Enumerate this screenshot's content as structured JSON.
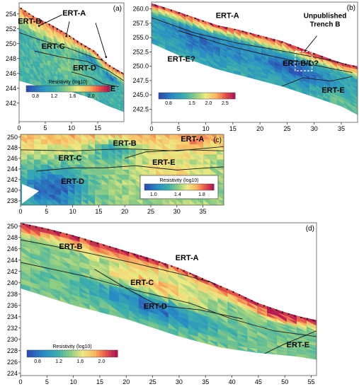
{
  "chart_data": [
    {
      "type": "heatmap",
      "panel_label": "(a)",
      "colorbar": {
        "title": "Resistivity (log10)",
        "ticks": [
          "0.8",
          "1.2",
          "1.6",
          "2.0"
        ],
        "range": [
          0.6,
          2.4
        ]
      },
      "xticks": [
        0,
        5,
        10,
        15
      ],
      "yticks": [
        242,
        244,
        246,
        248,
        250,
        252,
        254
      ],
      "xlim": [
        0,
        20
      ],
      "ylim": [
        239.5,
        255.5
      ],
      "units": [
        {
          "label": "ERT-B",
          "x": 2.0,
          "y": 252.7
        },
        {
          "label": "ERT-A",
          "x": 10.5,
          "y": 253.8
        },
        {
          "label": "ERT-C",
          "x": 6.5,
          "y": 249.3
        },
        {
          "label": "ERT-D",
          "x": 12.5,
          "y": 246.4
        },
        {
          "label": "ERT-E",
          "x": 16.2,
          "y": 243.6
        }
      ],
      "surface": [
        [
          0,
          255
        ],
        [
          3,
          253.6
        ],
        [
          6,
          252.6
        ],
        [
          9,
          251.4
        ],
        [
          12,
          250
        ],
        [
          14.5,
          249
        ],
        [
          16,
          247.8
        ],
        [
          17.5,
          247
        ],
        [
          20,
          246
        ]
      ],
      "bottom": [
        [
          0,
          245
        ],
        [
          5,
          244
        ],
        [
          10,
          243.5
        ],
        [
          14,
          242.6
        ],
        [
          17,
          241.6
        ],
        [
          20,
          240.8
        ]
      ]
    },
    {
      "type": "heatmap",
      "panel_label": "(b)",
      "colorbar": {
        "title": "",
        "ticks": [
          "0.8",
          "1.5",
          "2.0",
          "2.5"
        ],
        "range": [
          0.5,
          2.8
        ]
      },
      "xticks": [
        0,
        5,
        10,
        15,
        20,
        25,
        30,
        35
      ],
      "yticks": [
        242.5,
        245.0,
        247.5,
        250.0,
        252.5,
        255.0,
        257.5,
        260.0
      ],
      "xlim": [
        0,
        38
      ],
      "ylim": [
        240.2,
        261.2
      ],
      "units": [
        {
          "label": "ERT-A",
          "x": 14.0,
          "y": 258.4
        },
        {
          "label": "ERT-E?",
          "x": 5.5,
          "y": 250.8
        },
        {
          "label": "ERT-B/D?",
          "x": 27.5,
          "y": 250.1
        },
        {
          "label": "ERT-E",
          "x": 33.5,
          "y": 245.4
        }
      ],
      "annotation": {
        "text": [
          "Unpublished",
          "Trench B"
        ]
      },
      "surface": [
        [
          0,
          261
        ],
        [
          4,
          259.8
        ],
        [
          8,
          258.5
        ],
        [
          12,
          257.2
        ],
        [
          16,
          256.4
        ],
        [
          20,
          255.4
        ],
        [
          24,
          254.4
        ],
        [
          28,
          253
        ],
        [
          32,
          251.6
        ],
        [
          35,
          250.6
        ],
        [
          38,
          250
        ]
      ],
      "bottom": [
        [
          0,
          254
        ],
        [
          6,
          251.5
        ],
        [
          12,
          249.5
        ],
        [
          18,
          248
        ],
        [
          24,
          246.5
        ],
        [
          30,
          244.6
        ],
        [
          35,
          243
        ],
        [
          38,
          241.5
        ]
      ]
    },
    {
      "type": "heatmap",
      "panel_label": "(c)",
      "colorbar": {
        "title": "Resistivity (log10)",
        "ticks": [
          "1.0",
          "1.4",
          "1.8"
        ],
        "range": [
          0.85,
          2.0
        ]
      },
      "xticks": [
        0,
        5,
        10,
        15,
        20,
        25,
        30,
        35
      ],
      "yticks": [
        238,
        240,
        242,
        244,
        246,
        248,
        250
      ],
      "xlim": [
        0,
        39
      ],
      "ylim": [
        237.2,
        250.5
      ],
      "units": [
        {
          "label": "ERT-B",
          "x": 20.0,
          "y": 248.4
        },
        {
          "label": "ERT-A",
          "x": 33.0,
          "y": 249.2
        },
        {
          "label": "ERT-C",
          "x": 9.5,
          "y": 245.6
        },
        {
          "label": "ERT-E",
          "x": 27.5,
          "y": 244.8
        },
        {
          "label": "ERT-D",
          "x": 10.0,
          "y": 241.2
        }
      ],
      "surface": [
        [
          0,
          250.5
        ],
        [
          39,
          250.5
        ]
      ],
      "bottom": [
        [
          0,
          237.2
        ],
        [
          39,
          237.2
        ]
      ]
    },
    {
      "type": "heatmap",
      "panel_label": "(d)",
      "colorbar": {
        "title": "Resistivity (log10)",
        "ticks": [
          "0.8",
          "1.2",
          "1.6",
          "2.0"
        ],
        "range": [
          0.6,
          2.3
        ]
      },
      "xticks": [
        0,
        5,
        10,
        15,
        20,
        25,
        30,
        35,
        40,
        45,
        50,
        55
      ],
      "yticks": [
        224,
        226,
        228,
        230,
        232,
        234,
        236,
        238,
        240,
        242,
        244,
        246,
        248,
        250
      ],
      "xlim": [
        0,
        56
      ],
      "ylim": [
        223.6,
        250.6
      ],
      "units": [
        {
          "label": "ERT-B",
          "x": 9.5,
          "y": 246.0
        },
        {
          "label": "ERT-A",
          "x": 31.5,
          "y": 244.0
        },
        {
          "label": "ERT-C",
          "x": 23.0,
          "y": 239.6
        },
        {
          "label": "ERT-D",
          "x": 25.5,
          "y": 235.4
        },
        {
          "label": "ERT-E",
          "x": 52.5,
          "y": 228.6
        }
      ],
      "surface": [
        [
          0,
          250.6
        ],
        [
          5,
          249.6
        ],
        [
          10,
          248.4
        ],
        [
          15,
          247
        ],
        [
          20,
          245.6
        ],
        [
          25,
          244.2
        ],
        [
          30,
          242.6
        ],
        [
          35,
          240.6
        ],
        [
          40,
          238.6
        ],
        [
          45,
          236.4
        ],
        [
          50,
          234.8
        ],
        [
          53,
          234
        ],
        [
          56,
          233.4
        ]
      ],
      "bottom": [
        [
          0,
          239
        ],
        [
          10,
          236
        ],
        [
          20,
          233.6
        ],
        [
          30,
          230.5
        ],
        [
          38,
          228.5
        ],
        [
          45,
          227.6
        ],
        [
          52,
          227
        ],
        [
          56,
          226.4
        ]
      ]
    }
  ]
}
